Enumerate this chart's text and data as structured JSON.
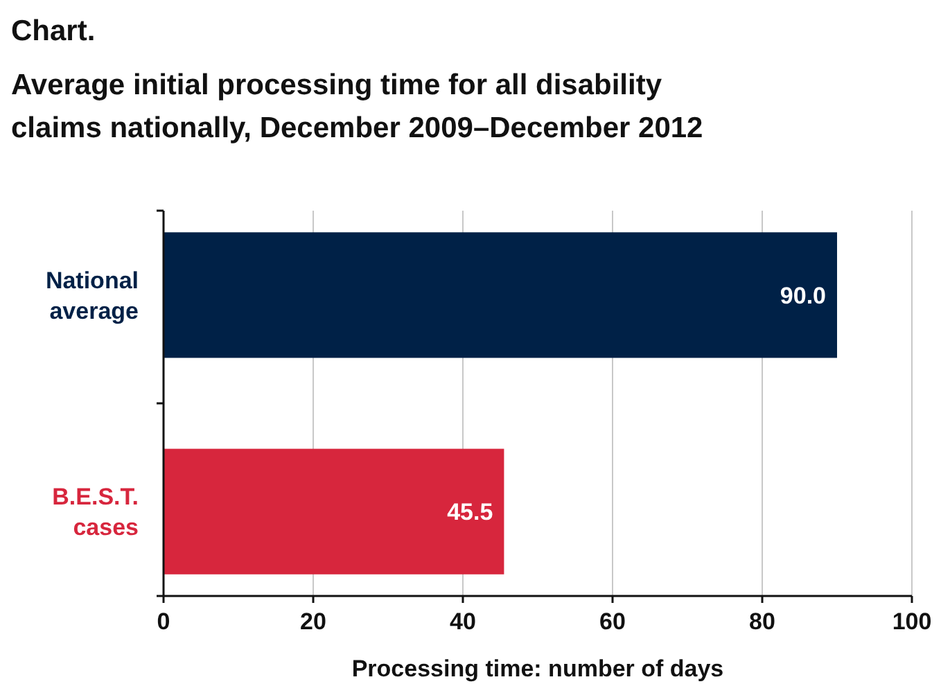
{
  "chart_data": {
    "type": "bar",
    "orientation": "horizontal",
    "title": "Chart.",
    "subtitle": "Average initial processing time for all disability claims nationally, December 2009–December 2012",
    "categories": [
      "National average",
      "B.E.S.T. cases"
    ],
    "values": [
      90.0,
      45.5
    ],
    "colors": [
      "#002147",
      "#d7263d"
    ],
    "value_labels": [
      "90.0",
      "45.5"
    ],
    "xlim": [
      0,
      100
    ],
    "xticks": [
      0,
      20,
      40,
      60,
      80,
      100
    ],
    "xlabel": "Processing time: number of days",
    "grid": "x"
  }
}
